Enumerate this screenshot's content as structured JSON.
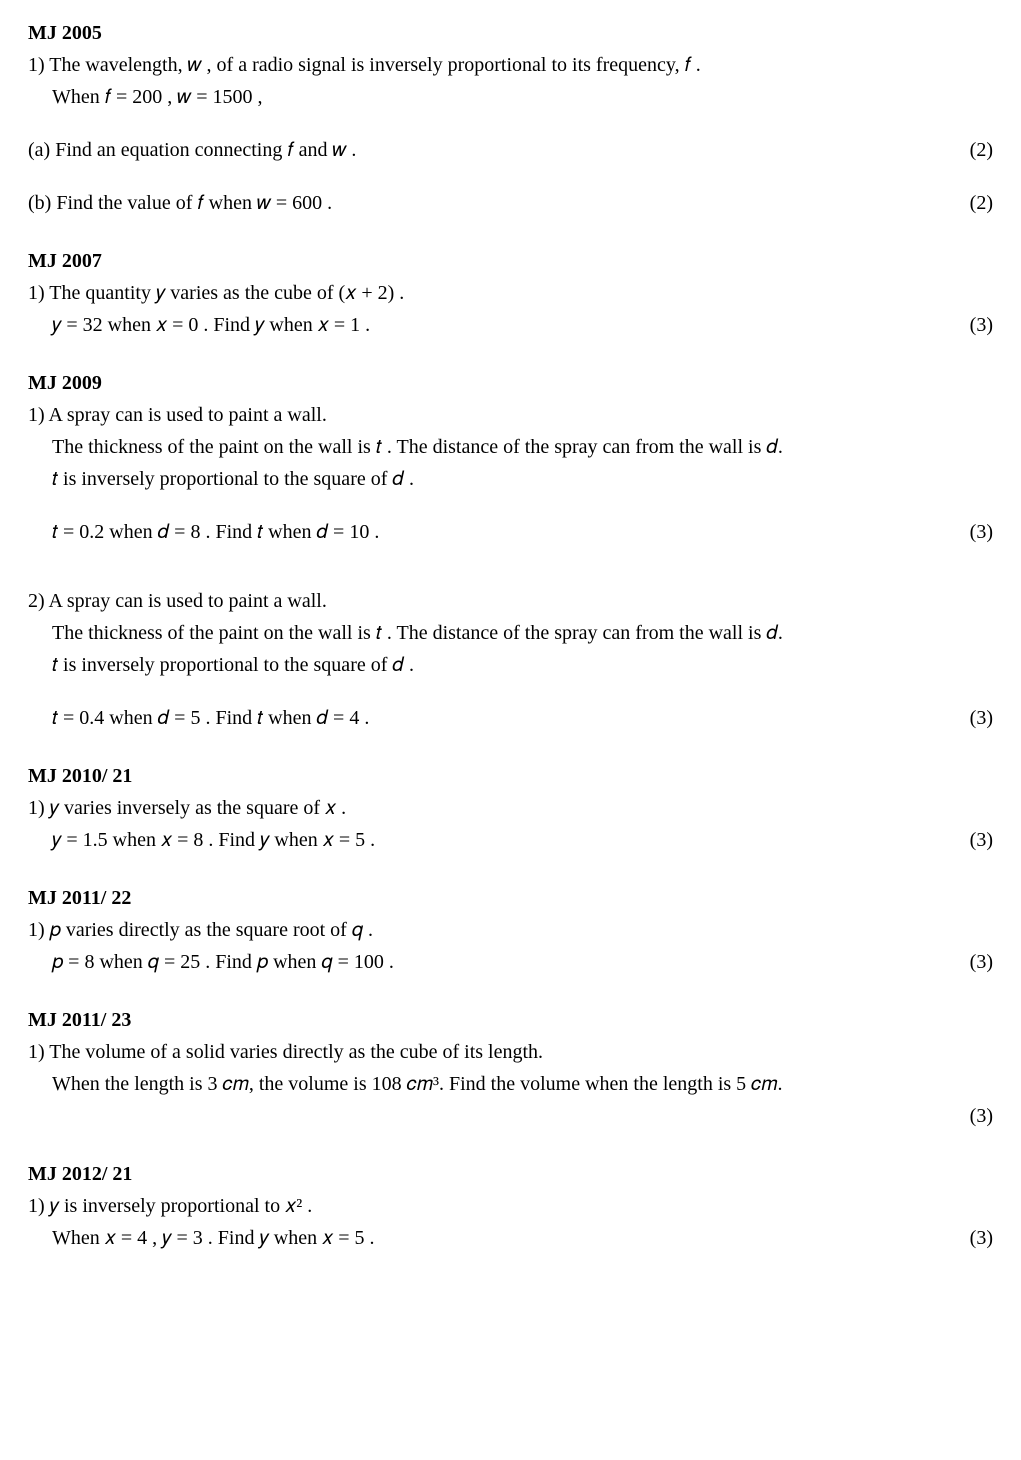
{
  "sections": [
    {
      "heading": "MJ 2005",
      "items": [
        {
          "type": "line",
          "text": "1) The wavelength,  𝑤 , of a radio signal is inversely proportional to its frequency, 𝑓 ."
        },
        {
          "type": "line",
          "indent": true,
          "text": "When  𝑓 = 200 ,  𝑤 = 1500 ,"
        },
        {
          "type": "gap",
          "size": "sm"
        },
        {
          "type": "row",
          "text": "(a) Find an equation connecting  𝑓  and  𝑤 .",
          "marks": "(2)"
        },
        {
          "type": "gap",
          "size": "sm"
        },
        {
          "type": "row",
          "text": "(b) Find the value of  𝑓  when  𝑤 = 600 .",
          "marks": "(2)"
        }
      ]
    },
    {
      "heading": "MJ 2007",
      "items": [
        {
          "type": "line",
          "text": "1) The quantity  𝑦  varies as the cube of  (𝑥 + 2) ."
        },
        {
          "type": "row",
          "indent": true,
          "text": "𝑦 = 32  when  𝑥 = 0 .  Find  𝑦  when  𝑥 = 1 .",
          "marks": "(3)"
        }
      ]
    },
    {
      "heading": "MJ 2009",
      "items": [
        {
          "type": "line",
          "text": "1) A spray can is used to paint a wall."
        },
        {
          "type": "line",
          "indent": true,
          "text": "The thickness of the paint on the wall is  𝑡 . The distance of the spray can from the wall is 𝑑."
        },
        {
          "type": "line",
          "indent": true,
          "text": "𝑡  is inversely proportional to the square of  𝑑 ."
        },
        {
          "type": "gap",
          "size": "sm"
        },
        {
          "type": "row",
          "indent": true,
          "text": "𝑡 = 0.2  when  𝑑 = 8 .  Find  𝑡  when  𝑑 = 10 .",
          "marks": "(3)"
        },
        {
          "type": "gap",
          "size": "md"
        },
        {
          "type": "line",
          "text": "2) A spray can is used to paint a wall."
        },
        {
          "type": "line",
          "indent": true,
          "text": "The thickness of the paint on the wall is  𝑡 . The distance of the spray can from the wall is 𝑑."
        },
        {
          "type": "line",
          "indent": true,
          "text": "𝑡  is inversely proportional to the square of  𝑑 ."
        },
        {
          "type": "gap",
          "size": "sm"
        },
        {
          "type": "row",
          "indent": true,
          "text": "𝑡 = 0.4  when  𝑑 = 5 .  Find  𝑡  when  𝑑 = 4 .",
          "marks": "(3)"
        }
      ]
    },
    {
      "heading": "MJ 2010/ 21",
      "items": [
        {
          "type": "line",
          "text": "1) 𝑦  varies inversely as the square of  𝑥 ."
        },
        {
          "type": "row",
          "indent": true,
          "text": "𝑦 = 1.5  when  𝑥 = 8 .  Find  𝑦  when  𝑥 = 5 .",
          "marks": "(3)"
        }
      ]
    },
    {
      "heading": "MJ 2011/ 22",
      "items": [
        {
          "type": "line",
          "text": "1) 𝑝  varies directly as the square root of  𝑞 ."
        },
        {
          "type": "row",
          "indent": true,
          "text": "𝑝 = 8  when  𝑞 = 25 .  Find  𝑝  when  𝑞 = 100 .",
          "marks": "(3)"
        }
      ]
    },
    {
      "heading": "MJ 2011/ 23",
      "items": [
        {
          "type": "line",
          "text": "1) The volume of a solid varies directly as the cube of its length."
        },
        {
          "type": "line",
          "indent": true,
          "text": "When the length is 3 𝑐𝑚, the volume is 108 𝑐𝑚³. Find the volume when the length is 5 𝑐𝑚."
        },
        {
          "type": "row",
          "text": "",
          "marks": "(3)"
        }
      ]
    },
    {
      "heading": "MJ 2012/ 21",
      "items": [
        {
          "type": "line",
          "text": "1) 𝑦  is inversely proportional to  𝑥² ."
        },
        {
          "type": "row",
          "indent": true,
          "text": "When  𝑥 = 4 ,  𝑦 = 3 .  Find  𝑦  when  𝑥 = 5 .",
          "marks": "(3)"
        }
      ]
    }
  ]
}
